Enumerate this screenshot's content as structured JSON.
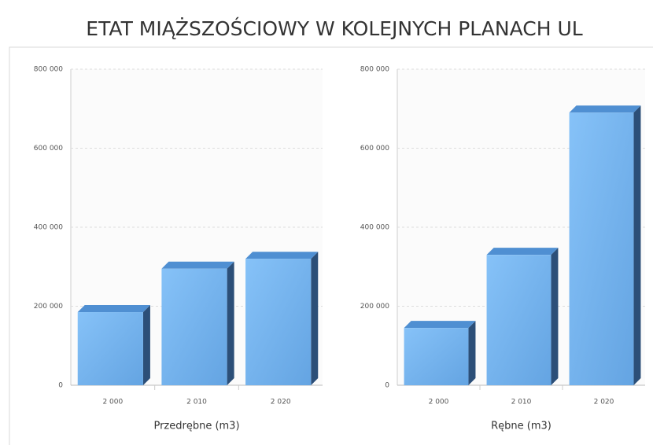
{
  "title": "ETAT MIĄŻSZOŚCIOWY W  KOLEJNYCH PLANACH UL",
  "chart_data": [
    {
      "type": "bar",
      "xlabel": "Przedrębne (m3)",
      "categories": [
        "2 000",
        "2 010",
        "2 020"
      ],
      "values": [
        185000,
        295000,
        320000
      ],
      "color": "#6aaeec",
      "ylim": [
        0,
        800000
      ],
      "yticks": [
        0,
        {
          "value": 200000,
          "label": "200 000"
        },
        {
          "value": 400000,
          "label": "400 000"
        },
        {
          "value": 600000,
          "label": "600 000"
        },
        {
          "value": 800000,
          "label": "800 000"
        }
      ],
      "grid": true
    },
    {
      "type": "bar",
      "xlabel": "Rębne (m3)",
      "categories": [
        "2 000",
        "2 010",
        "2 020"
      ],
      "values": [
        145000,
        330000,
        690000
      ],
      "color": "#6aaeec",
      "ylim": [
        0,
        800000
      ],
      "yticks": [
        0,
        {
          "value": 200000,
          "label": "200 000"
        },
        {
          "value": 400000,
          "label": "400 000"
        },
        {
          "value": 600000,
          "label": "600 000"
        },
        {
          "value": 800000,
          "label": "800 000"
        }
      ],
      "grid": true
    }
  ]
}
